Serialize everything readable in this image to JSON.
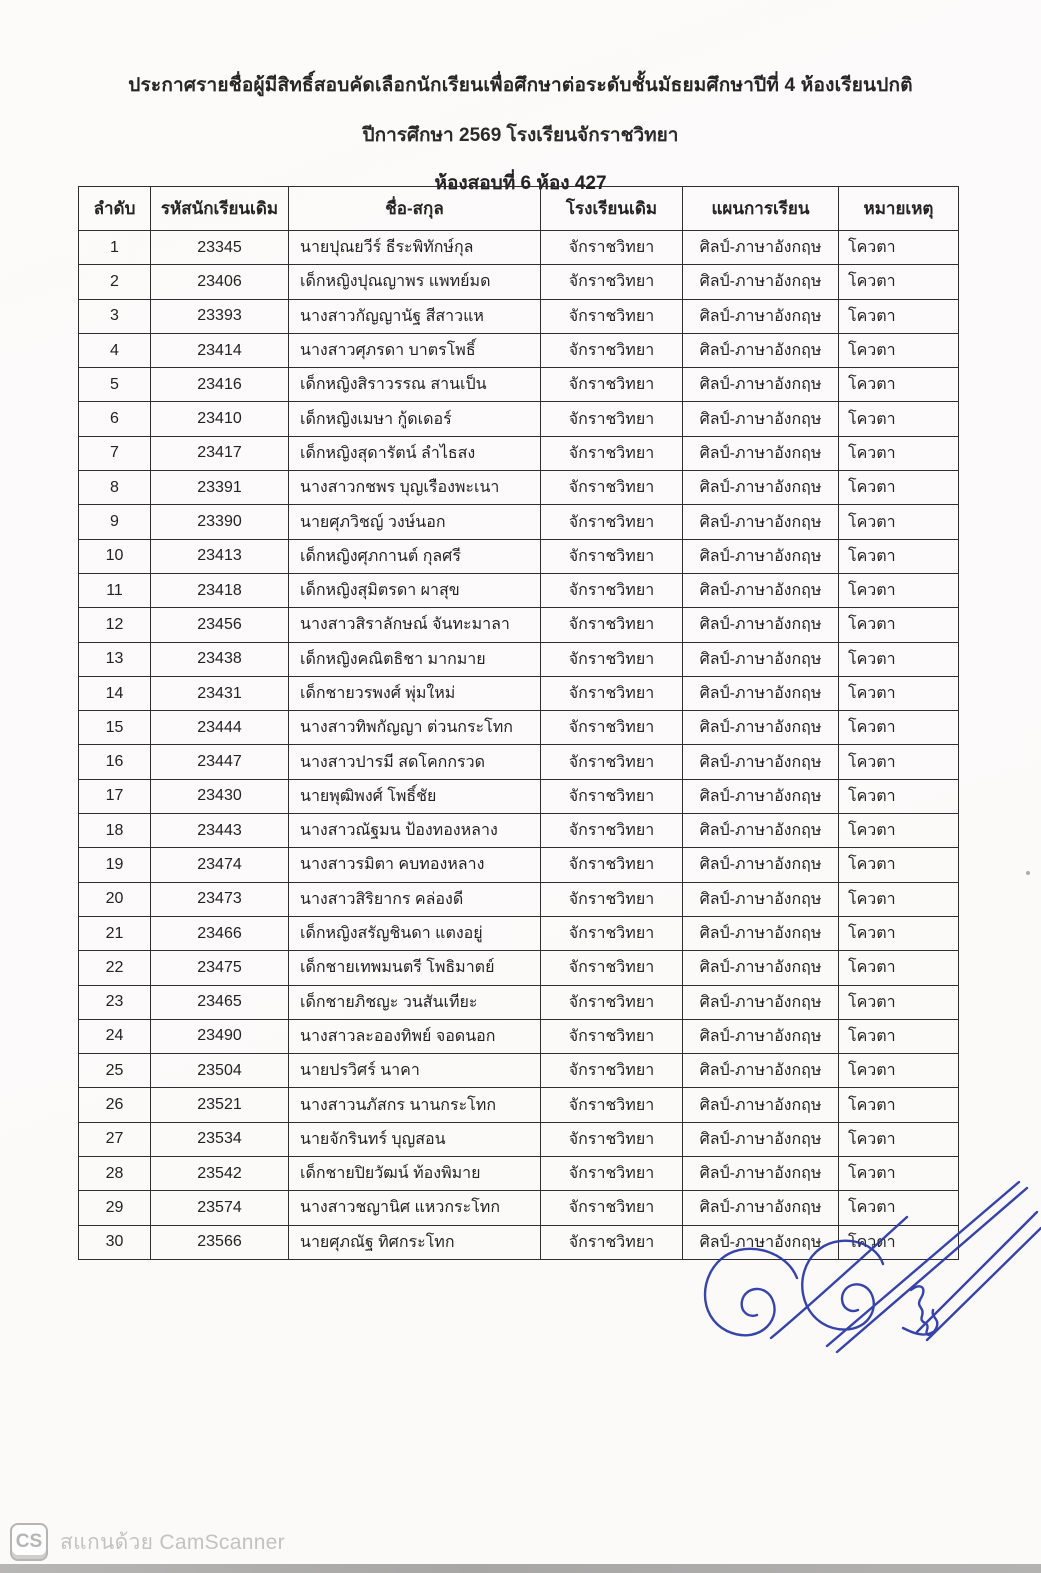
{
  "title": {
    "line1": "ประกาศรายชื่อผู้มีสิทธิ์สอบคัดเลือกนักเรียนเพื่อศึกษาต่อระดับชั้นมัธยมศึกษาปีที่ 4 ห้องเรียนปกติ",
    "line2": "ปีการศึกษา 2569 โรงเรียนจักราชวิทยา",
    "line3": "ห้องสอบที่ 6  ห้อง 427"
  },
  "table": {
    "headers": [
      "ลำดับ",
      "รหัสนักเรียนเดิม",
      "ชื่อ-สกุล",
      "โรงเรียนเดิม",
      "แผนการเรียน",
      "หมายเหตุ"
    ],
    "rows": [
      [
        "1",
        "23345",
        "นายปุณยวีร์ ธีระพิทักษ์กุล",
        "จักราชวิทยา",
        "ศิลป์-ภาษาอังกฤษ",
        "โควตา"
      ],
      [
        "2",
        "23406",
        "เด็กหญิงปุณญาพร แพทย์มด",
        "จักราชวิทยา",
        "ศิลป์-ภาษาอังกฤษ",
        "โควตา"
      ],
      [
        "3",
        "23393",
        "นางสาวกัญญานัฐ สีสาวแห",
        "จักราชวิทยา",
        "ศิลป์-ภาษาอังกฤษ",
        "โควตา"
      ],
      [
        "4",
        "23414",
        "นางสาวศุภรดา บาตรโพธิ์",
        "จักราชวิทยา",
        "ศิลป์-ภาษาอังกฤษ",
        "โควตา"
      ],
      [
        "5",
        "23416",
        "เด็กหญิงสิราวรรณ สานเป็น",
        "จักราชวิทยา",
        "ศิลป์-ภาษาอังกฤษ",
        "โควตา"
      ],
      [
        "6",
        "23410",
        "เด็กหญิงเมษา กู้ดเดอร์",
        "จักราชวิทยา",
        "ศิลป์-ภาษาอังกฤษ",
        "โควตา"
      ],
      [
        "7",
        "23417",
        "เด็กหญิงสุดารัตน์ ลำไธสง",
        "จักราชวิทยา",
        "ศิลป์-ภาษาอังกฤษ",
        "โควตา"
      ],
      [
        "8",
        "23391",
        "นางสาวกชพร บุญเรืองพะเนา",
        "จักราชวิทยา",
        "ศิลป์-ภาษาอังกฤษ",
        "โควตา"
      ],
      [
        "9",
        "23390",
        "นายศุภวิชญ์ วงษ์นอก",
        "จักราชวิทยา",
        "ศิลป์-ภาษาอังกฤษ",
        "โควตา"
      ],
      [
        "10",
        "23413",
        "เด็กหญิงศุภกานต์ กุลศรี",
        "จักราชวิทยา",
        "ศิลป์-ภาษาอังกฤษ",
        "โควตา"
      ],
      [
        "11",
        "23418",
        "เด็กหญิงสุมิตรดา ผาสุข",
        "จักราชวิทยา",
        "ศิลป์-ภาษาอังกฤษ",
        "โควตา"
      ],
      [
        "12",
        "23456",
        "นางสาวสิราลักษณ์ จันทะมาลา",
        "จักราชวิทยา",
        "ศิลป์-ภาษาอังกฤษ",
        "โควตา"
      ],
      [
        "13",
        "23438",
        "เด็กหญิงคณิตธิชา มากมาย",
        "จักราชวิทยา",
        "ศิลป์-ภาษาอังกฤษ",
        "โควตา"
      ],
      [
        "14",
        "23431",
        "เด็กชายวรพงศ์ พุ่มใหม่",
        "จักราชวิทยา",
        "ศิลป์-ภาษาอังกฤษ",
        "โควตา"
      ],
      [
        "15",
        "23444",
        "นางสาวทิพกัญญา ต่วนกระโทก",
        "จักราชวิทยา",
        "ศิลป์-ภาษาอังกฤษ",
        "โควตา"
      ],
      [
        "16",
        "23447",
        "นางสาวปารมี สดโคกกรวด",
        "จักราชวิทยา",
        "ศิลป์-ภาษาอังกฤษ",
        "โควตา"
      ],
      [
        "17",
        "23430",
        "นายพุฒิพงศ์ โพธิ์ชัย",
        "จักราชวิทยา",
        "ศิลป์-ภาษาอังกฤษ",
        "โควตา"
      ],
      [
        "18",
        "23443",
        "นางสาวณัฐมน ป้องทองหลาง",
        "จักราชวิทยา",
        "ศิลป์-ภาษาอังกฤษ",
        "โควตา"
      ],
      [
        "19",
        "23474",
        "นางสาวรมิตา คบทองหลาง",
        "จักราชวิทยา",
        "ศิลป์-ภาษาอังกฤษ",
        "โควตา"
      ],
      [
        "20",
        "23473",
        "นางสาวสิริยากร คล่องดี",
        "จักราชวิทยา",
        "ศิลป์-ภาษาอังกฤษ",
        "โควตา"
      ],
      [
        "21",
        "23466",
        "เด็กหญิงสรัญชินดา แตงอยู่",
        "จักราชวิทยา",
        "ศิลป์-ภาษาอังกฤษ",
        "โควตา"
      ],
      [
        "22",
        "23475",
        "เด็กชายเทพมนตรี โพธิมาตย์",
        "จักราชวิทยา",
        "ศิลป์-ภาษาอังกฤษ",
        "โควตา"
      ],
      [
        "23",
        "23465",
        "เด็กชายภิชญะ วนสันเทียะ",
        "จักราชวิทยา",
        "ศิลป์-ภาษาอังกฤษ",
        "โควตา"
      ],
      [
        "24",
        "23490",
        "นางสาวละอองทิพย์ จอดนอก",
        "จักราชวิทยา",
        "ศิลป์-ภาษาอังกฤษ",
        "โควตา"
      ],
      [
        "25",
        "23504",
        "นายปรวิศร์ นาคา",
        "จักราชวิทยา",
        "ศิลป์-ภาษาอังกฤษ",
        "โควตา"
      ],
      [
        "26",
        "23521",
        "นางสาวนภัสกร นานกระโทก",
        "จักราชวิทยา",
        "ศิลป์-ภาษาอังกฤษ",
        "โควตา"
      ],
      [
        "27",
        "23534",
        "นายจักรินทร์ บุญสอน",
        "จักราชวิทยา",
        "ศิลป์-ภาษาอังกฤษ",
        "โควตา"
      ],
      [
        "28",
        "23542",
        "เด็กชายปิยวัฒน์ ท้องพิมาย",
        "จักราชวิทยา",
        "ศิลป์-ภาษาอังกฤษ",
        "โควตา"
      ],
      [
        "29",
        "23574",
        "นางสาวชญานิศ แหวกระโทก",
        "จักราชวิทยา",
        "ศิลป์-ภาษาอังกฤษ",
        "โควตา"
      ],
      [
        "30",
        "23566",
        "นายศุภณัฐ ทิศกระโทก",
        "จักราชวิทยา",
        "ศิลป์-ภาษาอังกฤษ",
        "โควตา"
      ]
    ]
  },
  "signature": {
    "ink_color": "#2b3aa6"
  },
  "footer": {
    "logo_text": "CS",
    "caption": "สแกนด้วย CamScanner"
  }
}
